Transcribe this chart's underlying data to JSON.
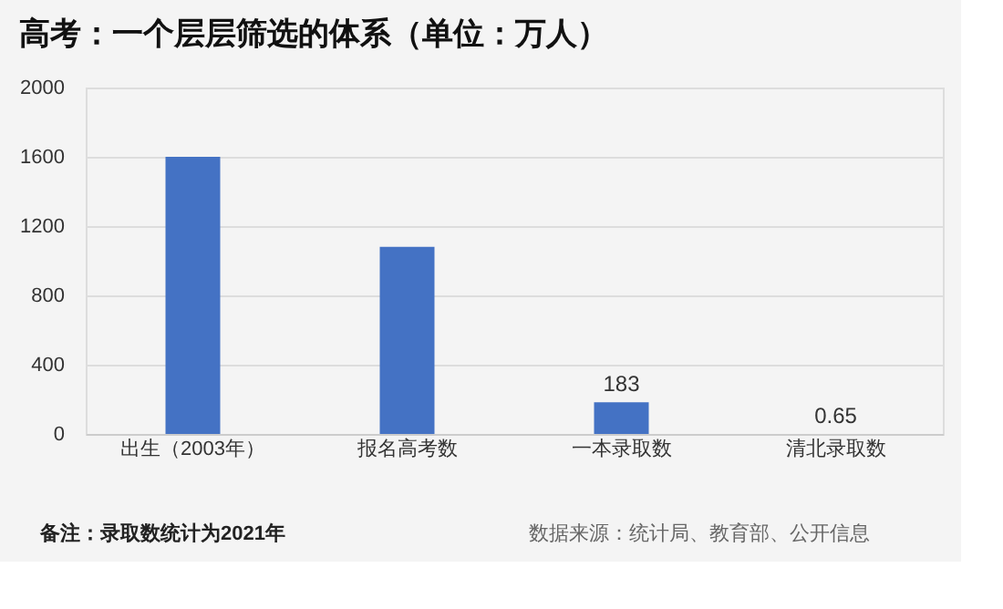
{
  "chart_data": {
    "type": "bar",
    "title": "高考：一个层层筛选的体系（单位：万人）",
    "categories": [
      "出生（2003年）",
      "报名高考数",
      "一本录取数",
      "清北录取数"
    ],
    "values": [
      1600,
      1080,
      183,
      0.65
    ],
    "value_labels": [
      null,
      null,
      "183",
      "0.65"
    ],
    "color": "#4472c4",
    "ylim": [
      0,
      2000
    ],
    "yticks": [
      0,
      400,
      800,
      1200,
      1600,
      2000
    ],
    "grid": "y",
    "annotations": [
      "备注：录取数统计为2021年",
      "数据来源：统计局、教育部、公开信息"
    ]
  }
}
